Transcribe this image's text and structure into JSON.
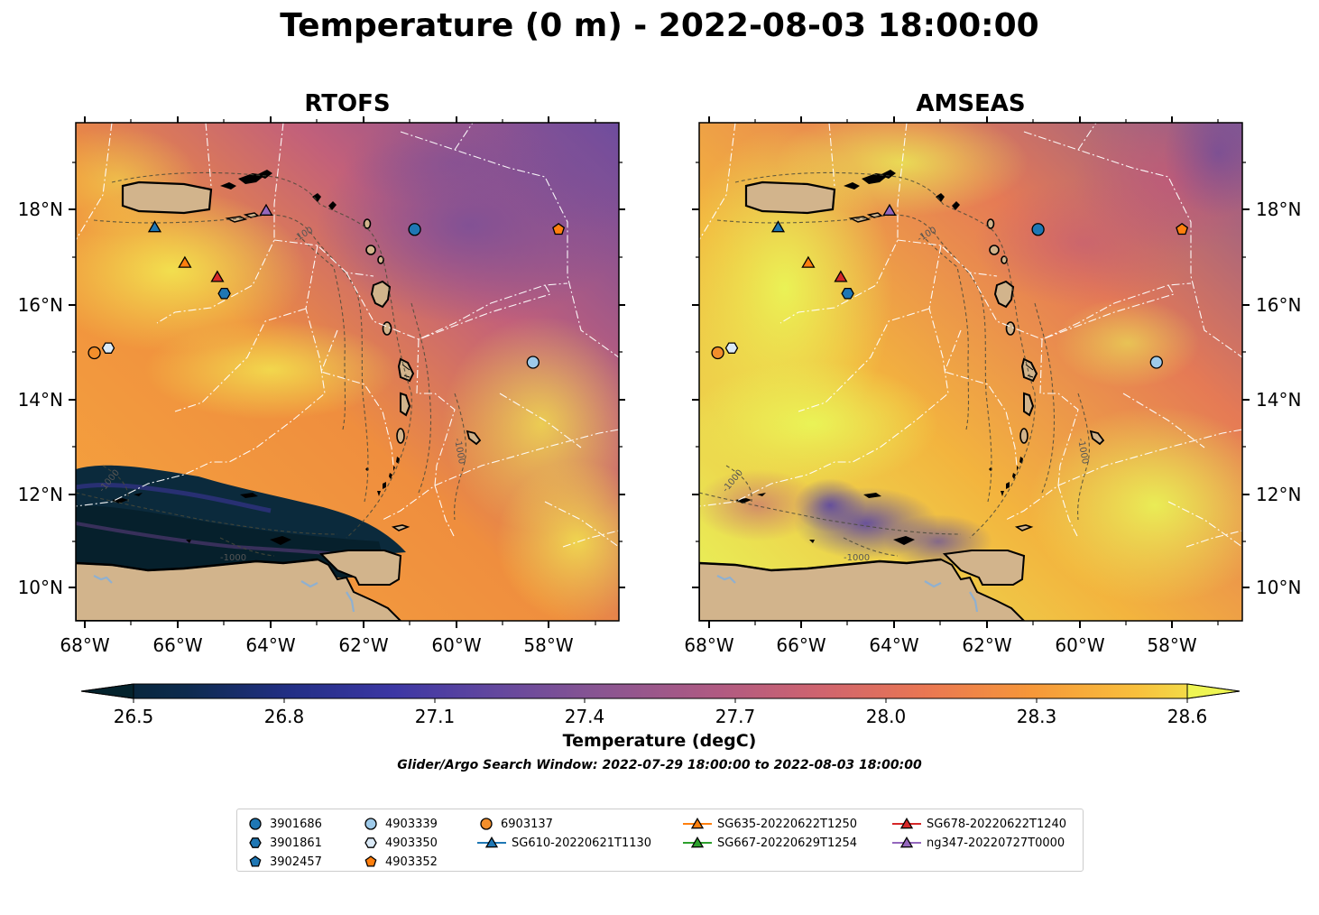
{
  "title": "Temperature (0 m) - 2022-08-03 18:00:00",
  "panels": [
    {
      "title": "RTOFS"
    },
    {
      "title": "AMSEAS"
    }
  ],
  "lon_labels": [
    "68°W",
    "66°W",
    "64°W",
    "62°W",
    "60°W",
    "58°W"
  ],
  "lat_labels": [
    "18°N",
    "16°N",
    "14°N",
    "12°N",
    "10°N"
  ],
  "colorbar": {
    "label": "Temperature (degC)",
    "ticks": [
      "26.5",
      "26.8",
      "27.1",
      "27.4",
      "27.7",
      "28.0",
      "28.3",
      "28.6"
    ],
    "min": 26.4,
    "max": 28.6,
    "colormap": "thermal",
    "extend": "both"
  },
  "search_window": "Glider/Argo Search Window: 2022-07-29 18:00:00 to 2022-08-03 18:00:00",
  "legend": [
    {
      "label": "3901686",
      "marker": "circle",
      "color": "#1f77b4"
    },
    {
      "label": "3901861",
      "marker": "hexagon",
      "color": "#1f77b4"
    },
    {
      "label": "3902457",
      "marker": "pentagon",
      "color": "#1f77b4"
    },
    {
      "label": "4903339",
      "marker": "circle",
      "color": "#9ecae9"
    },
    {
      "label": "4903350",
      "marker": "hexagon",
      "color": "#dbeaf7"
    },
    {
      "label": "4903352",
      "marker": "pentagon",
      "color": "#ff7f0e"
    },
    {
      "label": "6903137",
      "marker": "circle",
      "color": "#f28e2b"
    },
    {
      "label": "SG610-20220621T1130",
      "marker": "triangle",
      "color": "#1f77b4"
    },
    {
      "label": "SG635-20220622T1250",
      "marker": "triangle",
      "color": "#ff7f0e"
    },
    {
      "label": "SG667-20220629T1254",
      "marker": "triangle",
      "color": "#2ca02c"
    },
    {
      "label": "SG678-20220622T1240",
      "marker": "triangle",
      "color": "#d62728"
    },
    {
      "label": "ng347-20220727T0000",
      "marker": "triangle",
      "color": "#9467bd"
    }
  ],
  "observations": [
    {
      "id": "3901686",
      "lon": -60.9,
      "lat": 17.55
    },
    {
      "id": "3901861",
      "lon": -65.0,
      "lat": 16.2
    },
    {
      "id": "4903339",
      "lon": -58.35,
      "lat": 14.75
    },
    {
      "id": "4903350",
      "lon": -67.5,
      "lat": 15.05
    },
    {
      "id": "4903352",
      "lon": -57.8,
      "lat": 17.55
    },
    {
      "id": "6903137",
      "lon": -67.8,
      "lat": 14.95
    },
    {
      "id": "SG610-20220621T1130",
      "lon": -66.5,
      "lat": 17.6
    },
    {
      "id": "SG635-20220622T1250",
      "lon": -65.85,
      "lat": 16.85
    },
    {
      "id": "SG678-20220622T1240",
      "lon": -65.15,
      "lat": 16.55
    },
    {
      "id": "ng347-20220727T0000",
      "lon": -64.1,
      "lat": 17.95
    }
  ],
  "map_extent": {
    "lon": [
      -68.2,
      -56.5
    ],
    "lat": [
      9.3,
      19.8
    ]
  },
  "contour_labels": [
    "1000"
  ]
}
